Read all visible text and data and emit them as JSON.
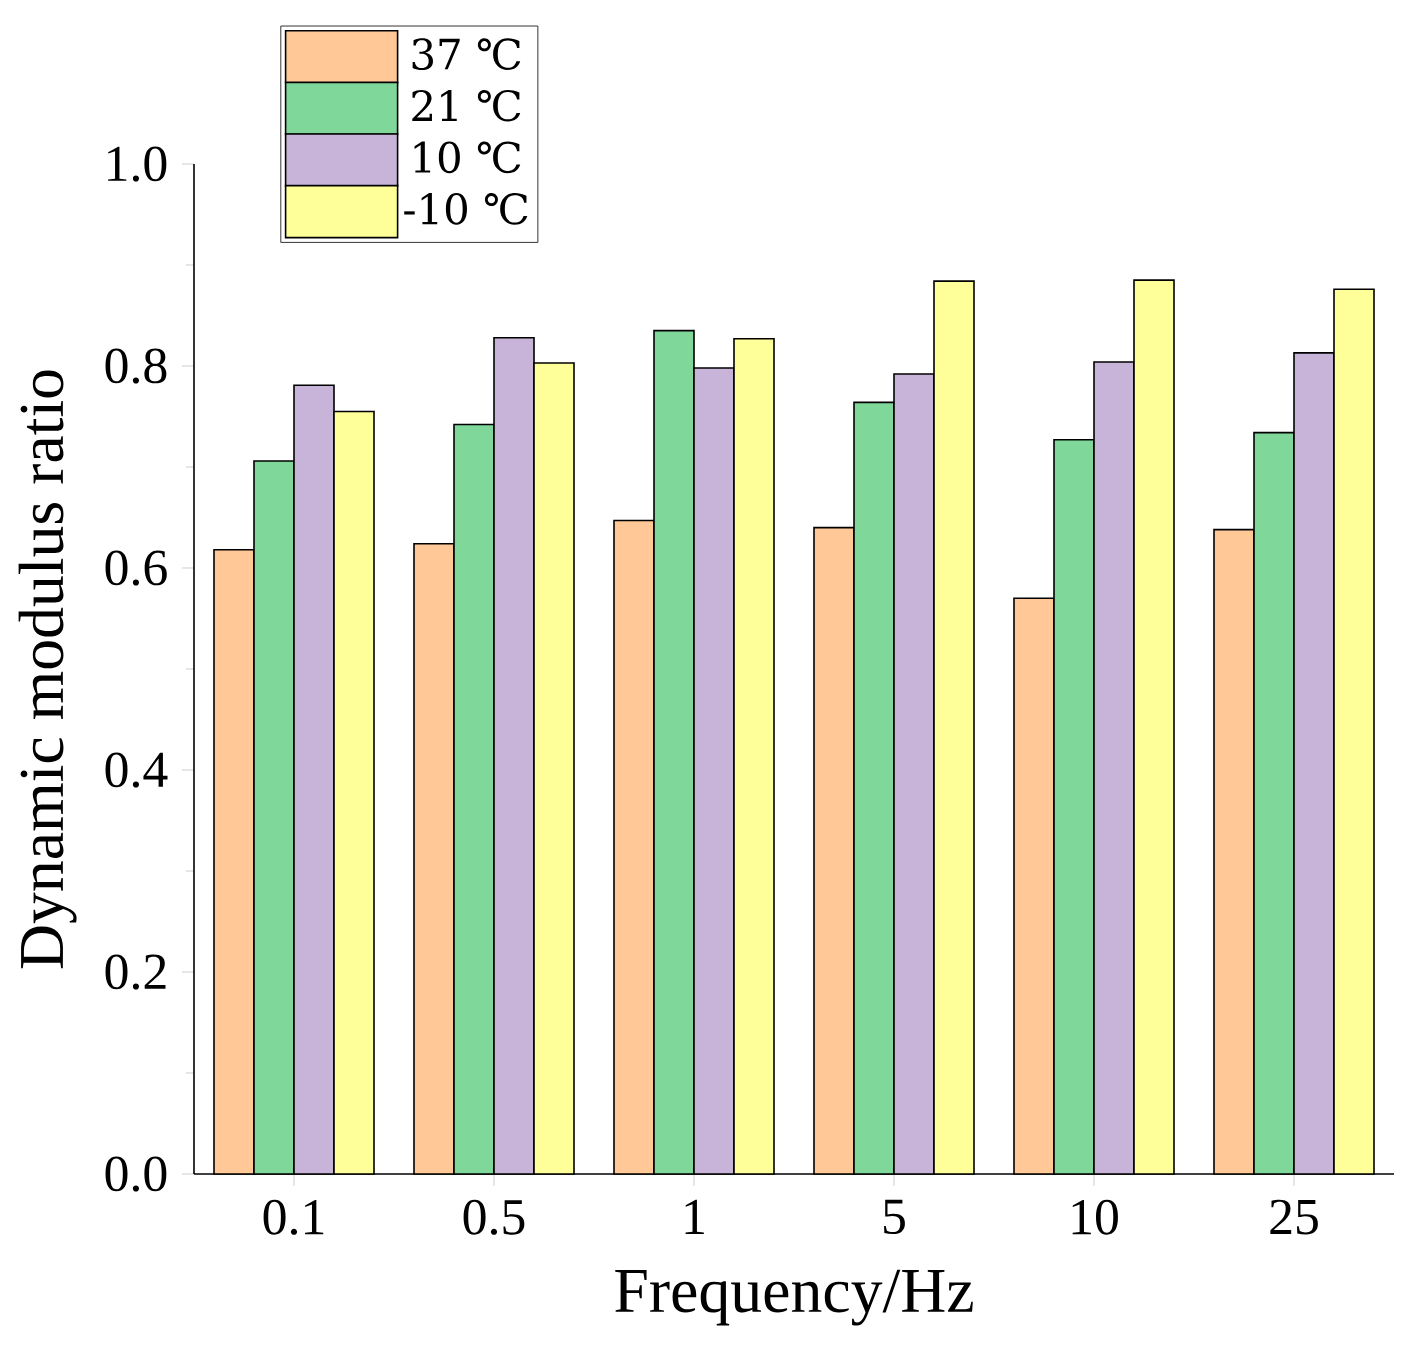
{
  "chart_data": {
    "type": "bar",
    "xlabel": "Frequency/Hz",
    "ylabel": "Dynamic modulus ratio",
    "categories": [
      "0.1",
      "0.5",
      "1",
      "5",
      "10",
      "25"
    ],
    "series": [
      {
        "name": "37 ℃",
        "color": "#ffc896",
        "values": [
          0.618,
          0.624,
          0.647,
          0.64,
          0.57,
          0.638
        ]
      },
      {
        "name": "21 ℃",
        "color": "#7fd89a",
        "values": [
          0.706,
          0.742,
          0.835,
          0.764,
          0.727,
          0.734
        ]
      },
      {
        "name": "10 ℃",
        "color": "#c8b4d8",
        "values": [
          0.781,
          0.828,
          0.798,
          0.792,
          0.804,
          0.813
        ]
      },
      {
        "name": "-10 ℃",
        "color": "#ffff99",
        "values": [
          0.755,
          0.803,
          0.827,
          0.884,
          0.885,
          0.876
        ]
      }
    ],
    "ylim": [
      0,
      1
    ],
    "yticks": [
      {
        "value": 0,
        "label": "0.0"
      },
      0.2,
      0.4,
      0.6,
      0.8,
      {
        "value": 1,
        "label": "1.0"
      }
    ],
    "grid": false,
    "legend": "top left"
  }
}
